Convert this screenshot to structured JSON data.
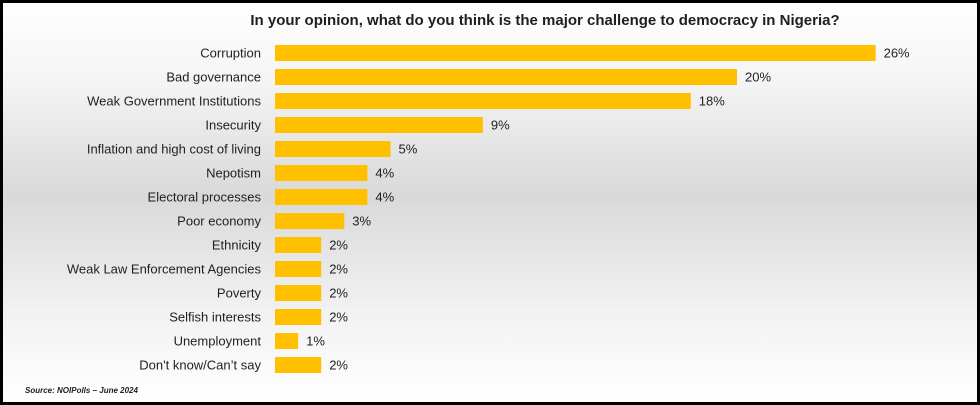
{
  "chart_data": {
    "type": "bar",
    "orientation": "horizontal",
    "title": "In your opinion, what do you think is the major challenge to democracy in Nigeria?",
    "categories": [
      "Corruption",
      "Bad governance",
      "Weak Government Institutions",
      "Insecurity",
      "Inflation and high cost of living",
      "Nepotism",
      "Electoral processes",
      "Poor economy",
      "Ethnicity",
      "Weak Law Enforcement Agencies",
      "Poverty",
      "Selfish interests",
      "Unemployment",
      "Don't know/Can’t say"
    ],
    "values": [
      26,
      20,
      18,
      9,
      5,
      4,
      4,
      3,
      2,
      2,
      2,
      2,
      1,
      2
    ],
    "value_labels": [
      "26%",
      "20%",
      "18%",
      "9%",
      "5%",
      "4%",
      "4%",
      "3%",
      "2%",
      "2%",
      "2%",
      "2%",
      "1%",
      "2%"
    ],
    "bar_color": "#FFC000",
    "grid": false,
    "legend": "none"
  },
  "source": "Source: NOIPolls – June 2024"
}
